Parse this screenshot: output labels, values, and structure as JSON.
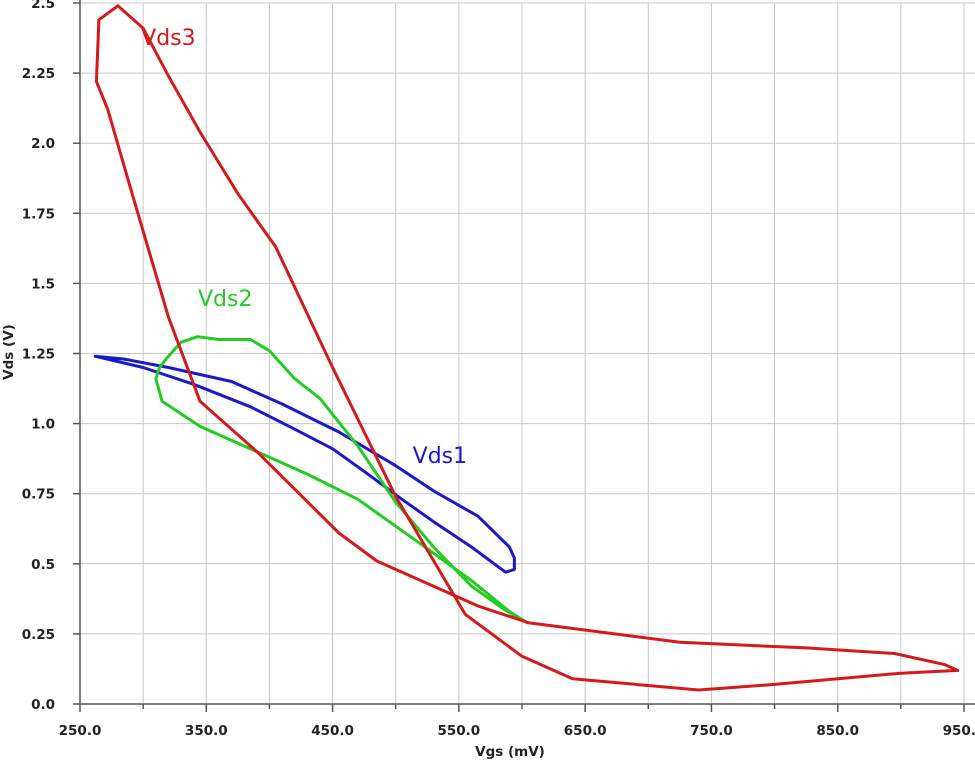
{
  "chart_data": {
    "type": "line",
    "title": "",
    "xlabel": "Vgs (mV)",
    "ylabel": "Vds (V)",
    "xlim": [
      250,
      950
    ],
    "ylim": [
      0,
      2.5
    ],
    "x_ticks": [
      250,
      350,
      450,
      550,
      650,
      750,
      850,
      950
    ],
    "x_tick_labels": [
      "250.0",
      "350.0",
      "450.0",
      "550.0",
      "650.0",
      "750.0",
      "850.0",
      "950.0"
    ],
    "x_minor_ticks": [
      300,
      400,
      500,
      600,
      700,
      800,
      900
    ],
    "y_ticks": [
      0,
      0.25,
      0.5,
      0.75,
      1.0,
      1.25,
      1.5,
      1.75,
      2.0,
      2.25,
      2.5
    ],
    "y_tick_labels": [
      "0.0",
      "0.25",
      "0.5",
      "0.75",
      "1.0",
      "1.25",
      "1.5",
      "1.75",
      "2.0",
      "2.25",
      "2.5"
    ],
    "grid": true,
    "series": [
      {
        "name": "Vds1",
        "color": "#1a1acc",
        "label_at": [
          535,
          0.86
        ],
        "points": [
          [
            262,
            1.24
          ],
          [
            285,
            1.23
          ],
          [
            320,
            1.2
          ],
          [
            370,
            1.15
          ],
          [
            410,
            1.07
          ],
          [
            455,
            0.97
          ],
          [
            500,
            0.85
          ],
          [
            530,
            0.76
          ],
          [
            565,
            0.67
          ],
          [
            590,
            0.56
          ],
          [
            594,
            0.52
          ],
          [
            594,
            0.48
          ],
          [
            587,
            0.47
          ],
          [
            578,
            0.5
          ],
          [
            560,
            0.56
          ],
          [
            530,
            0.65
          ],
          [
            505,
            0.73
          ],
          [
            475,
            0.83
          ],
          [
            450,
            0.91
          ],
          [
            420,
            0.98
          ],
          [
            385,
            1.06
          ],
          [
            340,
            1.14
          ],
          [
            300,
            1.2
          ],
          [
            262,
            1.24
          ]
        ]
      },
      {
        "name": "Vds2",
        "color": "#22cc22",
        "label_at": [
          365,
          1.42
        ],
        "points": [
          [
            604,
            0.29
          ],
          [
            585,
            0.34
          ],
          [
            560,
            0.42
          ],
          [
            530,
            0.56
          ],
          [
            500,
            0.72
          ],
          [
            470,
            0.92
          ],
          [
            440,
            1.09
          ],
          [
            420,
            1.16
          ],
          [
            400,
            1.26
          ],
          [
            385,
            1.3
          ],
          [
            360,
            1.3
          ],
          [
            343,
            1.31
          ],
          [
            330,
            1.29
          ],
          [
            318,
            1.23
          ],
          [
            313,
            1.2
          ],
          [
            310,
            1.16
          ],
          [
            315,
            1.08
          ],
          [
            345,
            0.99
          ],
          [
            390,
            0.9
          ],
          [
            430,
            0.82
          ],
          [
            470,
            0.73
          ],
          [
            520,
            0.57
          ],
          [
            560,
            0.44
          ],
          [
            590,
            0.33
          ],
          [
            604,
            0.29
          ]
        ]
      },
      {
        "name": "Vds3",
        "color": "#d41a1a",
        "label_at": [
          320,
          2.35
        ],
        "points": [
          [
            265,
            2.44
          ],
          [
            280,
            2.49
          ],
          [
            300,
            2.41
          ],
          [
            320,
            2.24
          ],
          [
            345,
            2.04
          ],
          [
            375,
            1.82
          ],
          [
            405,
            1.63
          ],
          [
            450,
            1.2
          ],
          [
            500,
            0.74
          ],
          [
            555,
            0.32
          ],
          [
            600,
            0.17
          ],
          [
            640,
            0.09
          ],
          [
            740,
            0.05
          ],
          [
            800,
            0.07
          ],
          [
            900,
            0.11
          ],
          [
            945,
            0.12
          ],
          [
            935,
            0.14
          ],
          [
            895,
            0.18
          ],
          [
            825,
            0.2
          ],
          [
            725,
            0.22
          ],
          [
            605,
            0.29
          ],
          [
            565,
            0.35
          ],
          [
            485,
            0.51
          ],
          [
            455,
            0.61
          ],
          [
            390,
            0.9
          ],
          [
            345,
            1.08
          ],
          [
            320,
            1.38
          ],
          [
            290,
            1.84
          ],
          [
            272,
            2.12
          ],
          [
            263,
            2.22
          ],
          [
            265,
            2.44
          ]
        ]
      }
    ]
  }
}
